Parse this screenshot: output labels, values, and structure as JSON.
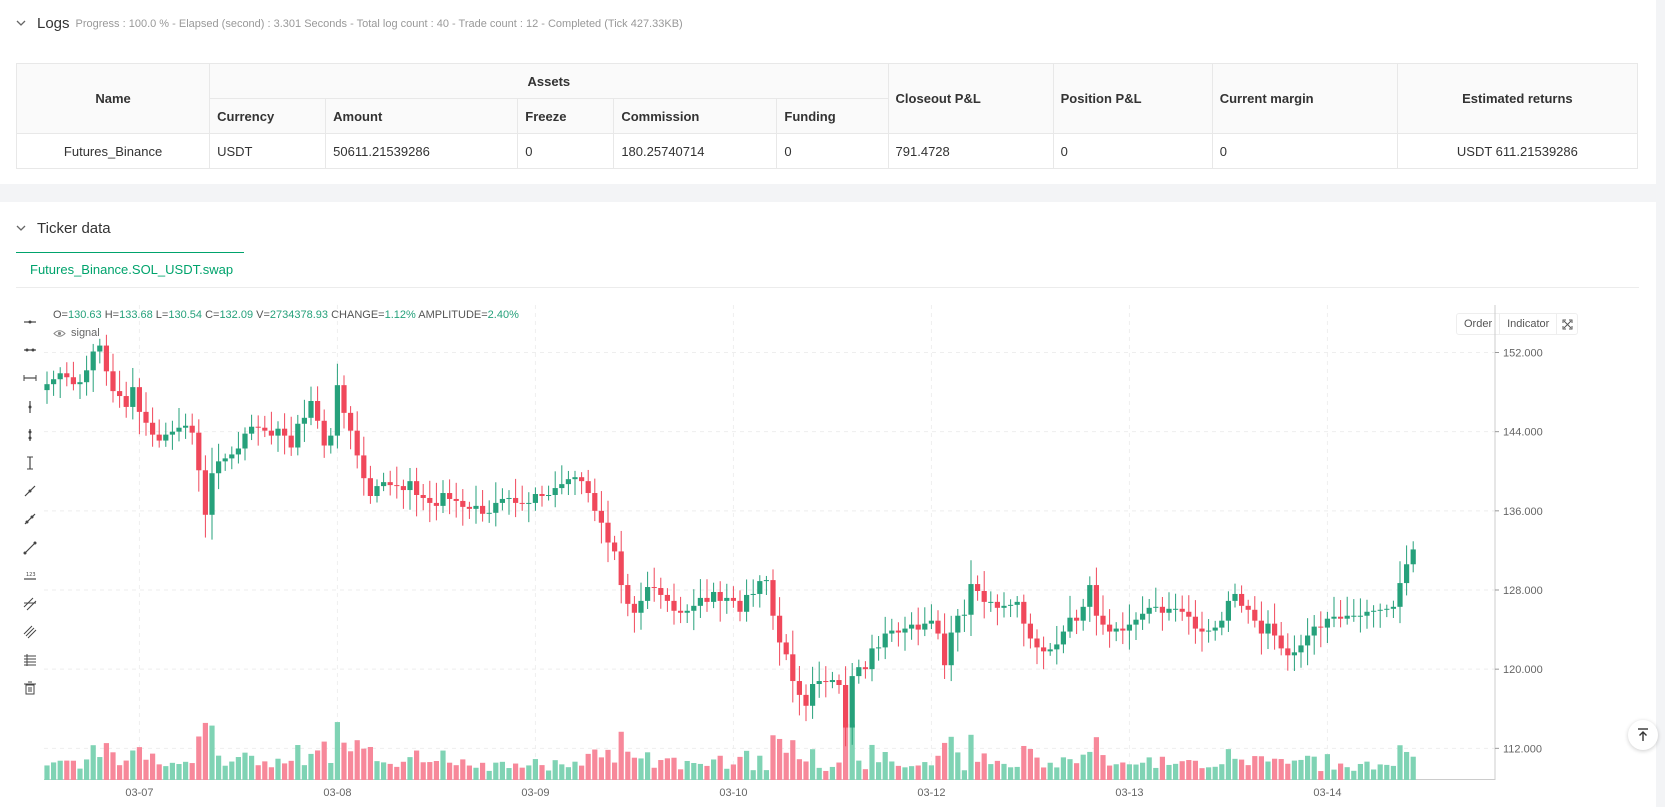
{
  "logs": {
    "title": "Logs",
    "meta": "Progress : 100.0 % - Elapsed (second) : 3.301  Seconds - Total log count : 40 - Trade count : 12 - Completed (Tick 427.33KB)"
  },
  "assets_table": {
    "headers": {
      "name": "Name",
      "assets": "Assets",
      "currency": "Currency",
      "amount": "Amount",
      "freeze": "Freeze",
      "commission": "Commission",
      "funding": "Funding",
      "closeout_pnl": "Closeout P&L",
      "position_pnl": "Position P&L",
      "current_margin": "Current margin",
      "estimated_returns": "Estimated returns"
    },
    "row": {
      "name": "Futures_Binance",
      "currency": "USDT",
      "amount": "50611.21539286",
      "freeze": "0",
      "commission": "180.25740714",
      "funding": "0",
      "closeout_pnl": "791.4728",
      "position_pnl": "0",
      "current_margin": "0",
      "estimated_returns": "USDT 611.21539286"
    }
  },
  "ticker": {
    "title": "Ticker data",
    "tab_label": "Futures_Binance.SOL_USDT.swap",
    "ohlc": {
      "o_label": "O=",
      "o": "130.63",
      "h_label": "H=",
      "h": "133.68",
      "l_label": "L=",
      "l": "130.54",
      "c_label": "C=",
      "c": "132.09",
      "v_label": "V=",
      "v": "2734378.93",
      "change_label": "CHANGE=",
      "change": "1.12%",
      "amplitude_label": "AMPLITUDE=",
      "amplitude": "2.40%"
    },
    "signal_label": "signal",
    "buttons": {
      "order": "Order",
      "indicator": "Indicator"
    }
  },
  "colors": {
    "up": "#26a17b",
    "down": "#f0485b",
    "up_vol": "#7fd3b4",
    "down_vol": "#f7889a",
    "accent": "#00a36c"
  },
  "chart_data": {
    "type": "candlestick",
    "symbol": "Futures_Binance.SOL_USDT.swap",
    "y_ticks": [
      "152.000",
      "144.000",
      "136.000",
      "128.000",
      "120.000",
      "112.000"
    ],
    "y_tick_values": [
      152,
      144,
      136,
      128,
      120,
      112
    ],
    "ylim": [
      108.8,
      156.8
    ],
    "x_ticks": [
      "03-07",
      "03-08",
      "03-09",
      "03-10",
      "03-12",
      "03-13",
      "03-14"
    ],
    "x_tick_index": [
      14,
      44,
      74,
      104,
      134,
      164,
      194
    ],
    "closes": [
      148.8,
      149.3,
      149.9,
      149.5,
      148.8,
      149.0,
      150.2,
      152.1,
      152.7,
      150.1,
      148.1,
      147.6,
      146.5,
      148.5,
      146.0,
      144.9,
      143.7,
      143.1,
      143.7,
      144.0,
      144.4,
      144.6,
      143.9,
      140.1,
      135.6,
      139.8,
      141.0,
      141.3,
      141.7,
      142.3,
      143.8,
      144.5,
      144.4,
      144.1,
      143.6,
      144.3,
      143.6,
      142.4,
      144.8,
      145.4,
      147.1,
      145.1,
      142.6,
      143.6,
      148.7,
      145.9,
      144.1,
      141.6,
      139.3,
      137.5,
      138.5,
      138.9,
      138.6,
      138.5,
      138.1,
      139.0,
      137.6,
      137.3,
      136.8,
      136.5,
      137.8,
      137.2,
      137.0,
      136.4,
      136.2,
      136.5,
      135.7,
      135.8,
      136.8,
      137.2,
      137.3,
      136.8,
      136.7,
      136.8,
      137.7,
      137.5,
      137.6,
      138.3,
      138.7,
      139.2,
      139.4,
      139.0,
      137.8,
      136.0,
      134.8,
      132.8,
      131.9,
      128.5,
      126.6,
      125.7,
      126.9,
      128.3,
      128.2,
      127.5,
      126.9,
      125.9,
      125.7,
      125.9,
      126.4,
      127.2,
      126.8,
      127.8,
      126.9,
      127.2,
      126.9,
      125.8,
      127.5,
      127.6,
      128.9,
      129.0,
      125.4,
      122.7,
      121.5,
      118.8,
      117.4,
      116.3,
      118.5,
      118.8,
      118.7,
      118.9,
      118.4,
      114.1,
      119.3,
      120.2,
      120.0,
      122.1,
      122.2,
      123.6,
      123.9,
      123.7,
      124.1,
      124.5,
      124.0,
      124.6,
      124.9,
      123.6,
      120.4,
      123.7,
      125.4,
      125.5,
      128.6,
      127.9,
      126.8,
      126.8,
      126.2,
      126.4,
      126.5,
      126.8,
      124.6,
      123.1,
      122.2,
      121.8,
      122.0,
      122.5,
      123.8,
      125.2,
      124.9,
      126.3,
      128.5,
      125.4,
      124.5,
      123.8,
      124.1,
      123.9,
      124.5,
      125.0,
      125.6,
      126.2,
      126.3,
      125.7,
      126.1,
      126.1,
      125.8,
      125.3,
      124.1,
      123.8,
      123.9,
      124.2,
      124.9,
      126.9,
      127.6,
      126.4,
      126.0,
      124.9,
      123.6,
      124.6,
      123.4,
      122.1,
      121.4,
      121.7,
      122.4,
      123.4,
      124.3,
      124.2,
      125.1,
      125.3,
      125.1,
      125.4,
      125.4,
      125.4,
      125.8,
      125.9,
      126.0,
      126.1,
      126.3,
      128.7,
      130.6,
      132.1
    ]
  }
}
